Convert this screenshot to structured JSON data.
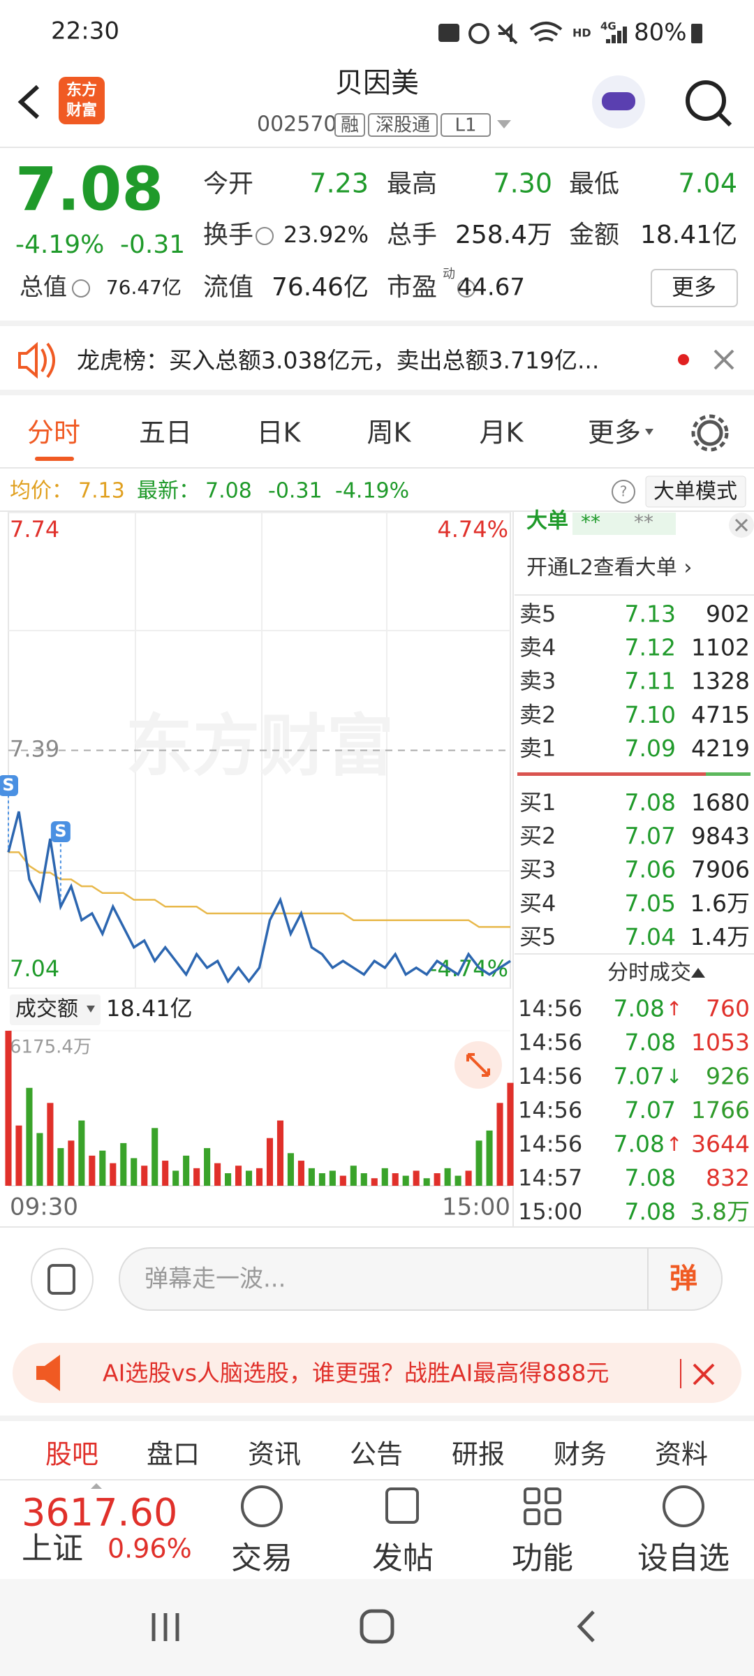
{
  "status_bar": {
    "time": "22:30",
    "network": "HD",
    "signal": "4G",
    "battery": "80%"
  },
  "header": {
    "logo": [
      "东方",
      "财富"
    ],
    "title": "贝因美",
    "code": "002570",
    "tags": [
      "融",
      "深股通",
      "L1"
    ]
  },
  "quote": {
    "price": "7.08",
    "change_pct": "-4.19%",
    "change": "-0.31",
    "stats": [
      {
        "label": "今开",
        "value": "7.23"
      },
      {
        "label": "最高",
        "value": "7.30"
      },
      {
        "label": "最低",
        "value": "7.04"
      },
      {
        "label": "换手",
        "value": "23.92%"
      },
      {
        "label": "总手",
        "value": "258.4万"
      },
      {
        "label": "金额",
        "value": "18.41亿"
      },
      {
        "label": "总值",
        "value": "76.47亿"
      },
      {
        "label": "流值",
        "value": "76.46亿"
      },
      {
        "label": "市盈",
        "sup": "动",
        "value": "44.67"
      }
    ],
    "more_button": "更多"
  },
  "notice": "龙虎榜：买入总额3.038亿元，卖出总额3.719亿...",
  "tabs": [
    "分时",
    "五日",
    "日K",
    "周K",
    "月K",
    "更多"
  ],
  "info_line": {
    "avg_label": "均价：",
    "avg": "7.13",
    "latest_label": "最新：",
    "latest": "7.08",
    "change": "-0.31",
    "change_pct": "-4.19%",
    "mode_button": "大单模式"
  },
  "intraday": {
    "watermark": "东方财富",
    "ylim": [
      7.04,
      7.74
    ],
    "yticks": [
      7.04,
      7.39,
      7.74
    ],
    "pct_labels": [
      "4.74%",
      "-4.74%"
    ],
    "signals": [
      "S",
      "S"
    ],
    "price": [
      7.24,
      7.3,
      7.2,
      7.17,
      7.26,
      7.16,
      7.19,
      7.14,
      7.15,
      7.12,
      7.16,
      7.13,
      7.1,
      7.11,
      7.08,
      7.1,
      7.08,
      7.06,
      7.09,
      7.07,
      7.08,
      7.05,
      7.07,
      7.05,
      7.07,
      7.14,
      7.17,
      7.12,
      7.15,
      7.1,
      7.09,
      7.07,
      7.08,
      7.07,
      7.06,
      7.08,
      7.07,
      7.09,
      7.06,
      7.07,
      7.06,
      7.08,
      7.07,
      7.06,
      7.09,
      7.07,
      7.06,
      7.07,
      7.08
    ],
    "avg": [
      7.24,
      7.24,
      7.22,
      7.21,
      7.21,
      7.2,
      7.2,
      7.19,
      7.19,
      7.18,
      7.18,
      7.18,
      7.17,
      7.17,
      7.17,
      7.16,
      7.16,
      7.16,
      7.16,
      7.15,
      7.15,
      7.15,
      7.15,
      7.15,
      7.15,
      7.15,
      7.15,
      7.15,
      7.15,
      7.15,
      7.15,
      7.15,
      7.15,
      7.14,
      7.14,
      7.14,
      7.14,
      7.14,
      7.14,
      7.14,
      7.14,
      7.14,
      7.14,
      7.14,
      7.14,
      7.13,
      7.13,
      7.13,
      7.13
    ],
    "price_color": "#2c66b0",
    "avg_color": "#e8b84a",
    "volume_title": "成交额",
    "volume_total": "18.41亿",
    "volume_ylim": [
      0,
      6175.4
    ],
    "volume_max": {
      "value": 6175.4,
      "label": "6175.4万"
    },
    "volume": [
      6175,
      2400,
      3900,
      2100,
      3300,
      1500,
      1800,
      2600,
      1200,
      1400,
      900,
      1700,
      1100,
      800,
      2300,
      1000,
      600,
      1200,
      700,
      1500,
      900,
      500,
      800,
      600,
      700,
      1900,
      2600,
      1300,
      1000,
      700,
      500,
      600,
      400,
      800,
      500,
      300,
      700,
      500,
      400,
      600,
      300,
      500,
      700,
      400,
      600,
      1800,
      2200,
      3300,
      4100
    ],
    "up_color": "#e0302a",
    "down_color": "#3aa32a",
    "time_labels": [
      "09:30",
      "15:00"
    ]
  },
  "big_orders": {
    "title": "大单",
    "masked": [
      "**",
      "**"
    ],
    "link": "开通L2查看大单 ›"
  },
  "order_book": {
    "asks": [
      [
        "卖5",
        "7.13",
        "902"
      ],
      [
        "卖4",
        "7.12",
        "1102"
      ],
      [
        "卖3",
        "7.11",
        "1328"
      ],
      [
        "卖2",
        "7.10",
        "4715"
      ],
      [
        "卖1",
        "7.09",
        "4219"
      ]
    ],
    "bids": [
      [
        "买1",
        "7.08",
        "1680"
      ],
      [
        "买2",
        "7.07",
        "9843"
      ],
      [
        "买3",
        "7.06",
        "7906"
      ],
      [
        "买4",
        "7.05",
        "1.6万"
      ],
      [
        "买5",
        "7.04",
        "1.4万"
      ]
    ]
  },
  "trades": {
    "title": "分时成交",
    "rows": [
      {
        "time": "14:56",
        "price": "7.08",
        "arrow": "↑",
        "volume": "760",
        "color": "#e0302a"
      },
      {
        "time": "14:56",
        "price": "7.08",
        "arrow": "",
        "volume": "1053",
        "color": "#e0302a"
      },
      {
        "time": "14:56",
        "price": "7.07",
        "arrow": "↓",
        "volume": "926",
        "color": "#2f9a2a"
      },
      {
        "time": "14:56",
        "price": "7.07",
        "arrow": "",
        "volume": "1766",
        "color": "#2f9a2a"
      },
      {
        "time": "14:56",
        "price": "7.08",
        "arrow": "↑",
        "volume": "3644",
        "color": "#e0302a"
      },
      {
        "time": "14:57",
        "price": "7.08",
        "arrow": "",
        "volume": "832",
        "color": "#e0302a"
      },
      {
        "time": "15:00",
        "price": "7.08",
        "arrow": "",
        "volume": "3.8万",
        "color": "#2f9a2a"
      }
    ]
  },
  "danmaku": {
    "placeholder": "弹幕走一波...",
    "button": "弹"
  },
  "ad": "AI选股vs人脑选股，谁更强？战胜AI最高得888元",
  "section_tabs": [
    "股吧",
    "盘口",
    "资讯",
    "公告",
    "研报",
    "财务",
    "资料"
  ],
  "index": {
    "value": "3617.60",
    "name": "上证",
    "change_pct": "0.96%"
  },
  "bottom_nav": [
    "交易",
    "发帖",
    "功能",
    "设自选"
  ]
}
